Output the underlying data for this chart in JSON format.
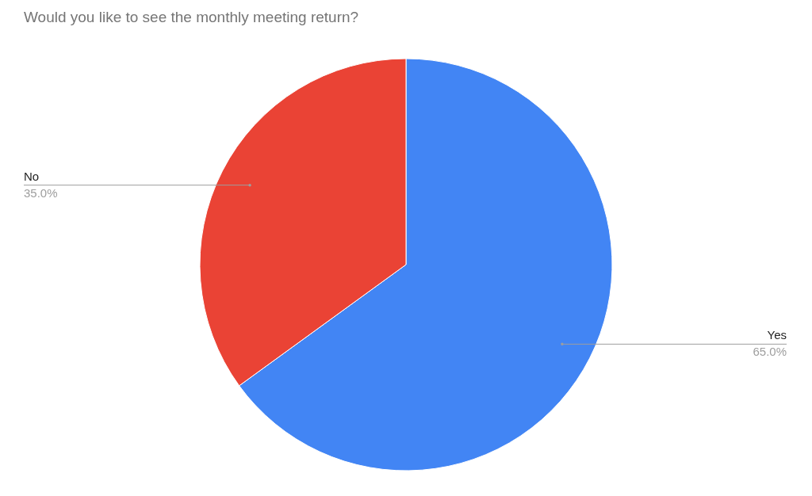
{
  "chart_data": {
    "type": "pie",
    "title": "Would you like to see the monthly meeting return?",
    "categories": [
      "Yes",
      "No"
    ],
    "values": [
      65,
      35
    ],
    "value_labels": [
      "65.0%",
      "35.0%"
    ],
    "colors": [
      "#4285f4",
      "#ea4335"
    ],
    "legend": false
  }
}
